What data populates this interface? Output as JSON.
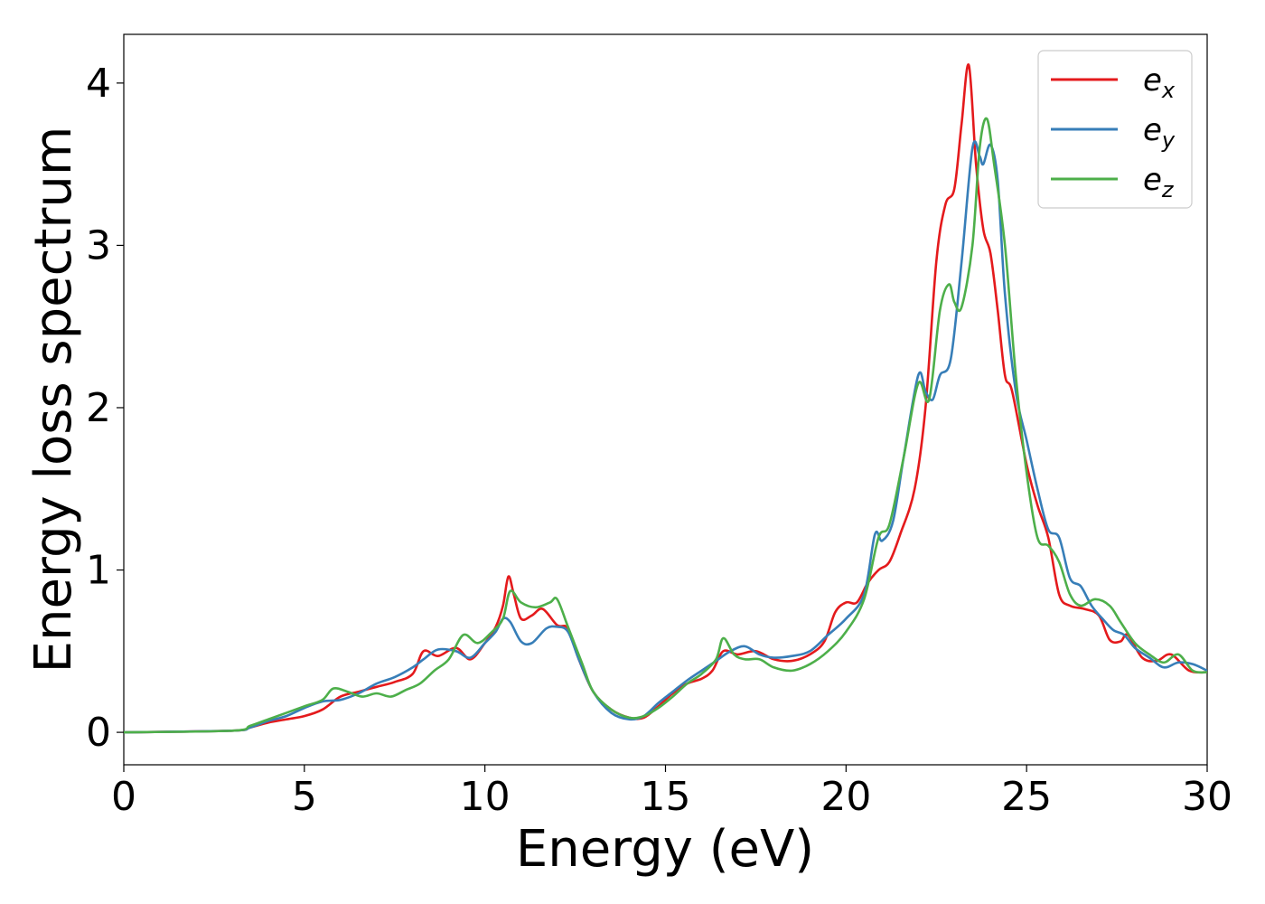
{
  "chart_data": {
    "type": "line",
    "title": "",
    "xlabel": "Energy (eV)",
    "ylabel": "Energy loss spectrum",
    "xlim": [
      0,
      30
    ],
    "ylim": [
      -0.2,
      4.3
    ],
    "xticks": [
      0,
      5,
      10,
      15,
      20,
      25,
      30
    ],
    "yticks": [
      0,
      1,
      2,
      3,
      4
    ],
    "grid": false,
    "legend_position": "top-right",
    "series": [
      {
        "name": "e",
        "subscript": "x",
        "color": "#e41a1c",
        "x": [
          0,
          3,
          3.5,
          4,
          4.5,
          5,
          5.5,
          6,
          6.5,
          7,
          7.5,
          8,
          8.3,
          8.7,
          9.2,
          9.6,
          10,
          10.3,
          10.5,
          10.65,
          10.8,
          11.0,
          11.3,
          11.6,
          12.0,
          12.3,
          12.6,
          13.0,
          13.5,
          14.0,
          14.4,
          14.8,
          15.2,
          15.6,
          16.0,
          16.3,
          16.6,
          17.0,
          17.5,
          18.0,
          18.5,
          19.0,
          19.4,
          19.7,
          20.0,
          20.3,
          20.6,
          20.9,
          21.2,
          21.5,
          21.9,
          22.2,
          22.5,
          22.75,
          23.0,
          23.2,
          23.4,
          23.6,
          23.8,
          24.0,
          24.2,
          24.4,
          24.6,
          25.0,
          25.3,
          25.6,
          25.9,
          26.2,
          26.6,
          27.0,
          27.3,
          27.6,
          27.8,
          28.2,
          28.6,
          29.0,
          29.5,
          30.0
        ],
        "y": [
          0,
          0.01,
          0.03,
          0.06,
          0.08,
          0.1,
          0.14,
          0.22,
          0.25,
          0.28,
          0.31,
          0.36,
          0.5,
          0.47,
          0.52,
          0.45,
          0.55,
          0.65,
          0.78,
          0.96,
          0.85,
          0.7,
          0.72,
          0.76,
          0.66,
          0.64,
          0.45,
          0.25,
          0.14,
          0.09,
          0.09,
          0.16,
          0.24,
          0.3,
          0.33,
          0.38,
          0.5,
          0.48,
          0.5,
          0.45,
          0.44,
          0.48,
          0.56,
          0.74,
          0.8,
          0.8,
          0.92,
          1.0,
          1.05,
          1.22,
          1.5,
          2.0,
          2.9,
          3.25,
          3.35,
          3.75,
          4.11,
          3.5,
          3.1,
          2.95,
          2.6,
          2.2,
          2.1,
          1.65,
          1.4,
          1.2,
          0.85,
          0.78,
          0.76,
          0.72,
          0.57,
          0.56,
          0.6,
          0.46,
          0.44,
          0.48,
          0.38,
          0.37
        ]
      },
      {
        "name": "e",
        "subscript": "y",
        "color": "#377eb8",
        "x": [
          0,
          3,
          3.5,
          4,
          4.5,
          5,
          5.5,
          6,
          6.5,
          7,
          7.5,
          8,
          8.3,
          8.7,
          9.2,
          9.6,
          10,
          10.3,
          10.5,
          10.7,
          11.0,
          11.3,
          11.7,
          12.0,
          12.3,
          12.6,
          13.0,
          13.5,
          14.0,
          14.4,
          14.8,
          15.2,
          15.6,
          16.0,
          16.4,
          16.8,
          17.2,
          17.6,
          18.0,
          18.5,
          19.0,
          19.5,
          20.0,
          20.5,
          20.8,
          21.0,
          21.3,
          21.6,
          22.0,
          22.2,
          22.4,
          22.6,
          22.9,
          23.2,
          23.5,
          23.7,
          23.8,
          24.0,
          24.2,
          24.4,
          24.7,
          25.0,
          25.3,
          25.6,
          25.9,
          26.2,
          26.5,
          26.8,
          27.1,
          27.4,
          27.7,
          28.0,
          28.4,
          28.8,
          29.2,
          29.6,
          30.0
        ],
        "y": [
          0,
          0.01,
          0.03,
          0.07,
          0.1,
          0.15,
          0.19,
          0.2,
          0.24,
          0.3,
          0.34,
          0.4,
          0.45,
          0.51,
          0.5,
          0.46,
          0.55,
          0.62,
          0.7,
          0.68,
          0.56,
          0.55,
          0.64,
          0.65,
          0.62,
          0.45,
          0.25,
          0.12,
          0.08,
          0.1,
          0.18,
          0.25,
          0.32,
          0.38,
          0.44,
          0.5,
          0.53,
          0.48,
          0.46,
          0.47,
          0.5,
          0.6,
          0.7,
          0.85,
          1.22,
          1.18,
          1.3,
          1.7,
          2.2,
          2.1,
          2.05,
          2.2,
          2.3,
          2.9,
          3.6,
          3.55,
          3.5,
          3.62,
          3.4,
          2.7,
          2.1,
          1.8,
          1.5,
          1.25,
          1.2,
          0.95,
          0.9,
          0.78,
          0.7,
          0.63,
          0.6,
          0.52,
          0.46,
          0.4,
          0.43,
          0.42,
          0.38
        ]
      },
      {
        "name": "e",
        "subscript": "z",
        "color": "#4daf4a",
        "x": [
          0,
          3,
          3.5,
          4,
          4.5,
          5,
          5.5,
          5.8,
          6.2,
          6.6,
          7.0,
          7.4,
          7.8,
          8.2,
          8.6,
          9.0,
          9.4,
          9.8,
          10.2,
          10.5,
          10.7,
          11.0,
          11.4,
          11.8,
          12.0,
          12.3,
          12.7,
          13.0,
          13.5,
          14.0,
          14.4,
          14.8,
          15.2,
          15.6,
          16.0,
          16.4,
          16.6,
          16.9,
          17.2,
          17.6,
          18.0,
          18.5,
          19.0,
          19.5,
          20.0,
          20.5,
          20.9,
          21.2,
          21.6,
          22.0,
          22.3,
          22.6,
          22.85,
          23.0,
          23.2,
          23.5,
          23.7,
          23.9,
          24.1,
          24.4,
          24.7,
          25.0,
          25.3,
          25.6,
          25.9,
          26.2,
          26.5,
          26.9,
          27.3,
          27.6,
          28.0,
          28.4,
          28.8,
          29.2,
          29.6,
          30.0
        ],
        "y": [
          0,
          0.01,
          0.04,
          0.08,
          0.12,
          0.16,
          0.2,
          0.27,
          0.25,
          0.22,
          0.24,
          0.22,
          0.26,
          0.3,
          0.38,
          0.45,
          0.6,
          0.55,
          0.62,
          0.7,
          0.87,
          0.8,
          0.77,
          0.8,
          0.82,
          0.65,
          0.42,
          0.25,
          0.14,
          0.09,
          0.1,
          0.15,
          0.22,
          0.3,
          0.36,
          0.45,
          0.58,
          0.48,
          0.45,
          0.45,
          0.4,
          0.38,
          0.42,
          0.5,
          0.62,
          0.82,
          1.2,
          1.28,
          1.7,
          2.15,
          2.05,
          2.6,
          2.76,
          2.65,
          2.62,
          3.0,
          3.6,
          3.78,
          3.5,
          3.0,
          2.2,
          1.6,
          1.2,
          1.15,
          1.05,
          0.85,
          0.78,
          0.82,
          0.78,
          0.68,
          0.55,
          0.48,
          0.43,
          0.48,
          0.38,
          0.37
        ]
      }
    ]
  }
}
